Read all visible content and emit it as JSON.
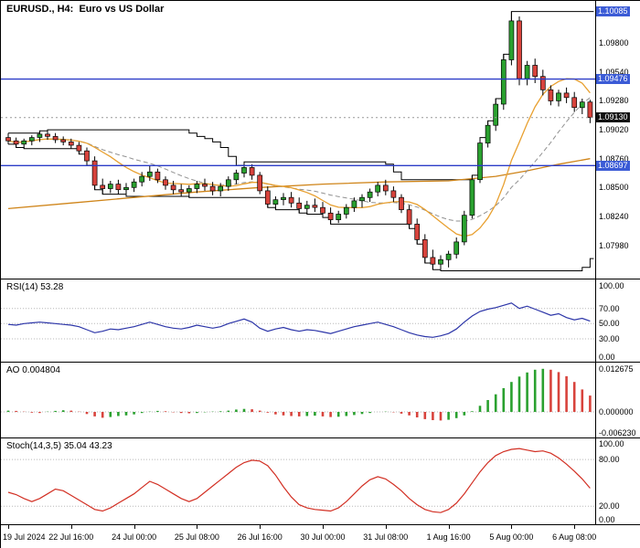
{
  "header": {
    "title": "EURUSD., H4:  Euro vs US Dollar"
  },
  "colors": {
    "bull": "#2aa12f",
    "bear": "#d8433c",
    "wick": "#000000",
    "ma_fast": "#e8a030",
    "ma_mid": "#909090",
    "ma_slow": "#cf8418",
    "channel": "#000000",
    "hline": "#2b3cc8",
    "badge_level": "#3b5bd6",
    "badge_price": "#111111",
    "rsi": "#2c35a8",
    "stoch": "#d22f23",
    "ao_up": "#2aa12f",
    "ao_down": "#d8433c",
    "grid_level": "#b8b8b8"
  },
  "chart_data": [
    {
      "id": "main",
      "type": "candlestick",
      "title": "EURUSD., H4:  Euro vs US Dollar",
      "symbol": "EURUSD",
      "timeframe": "H4",
      "ylim": [
        1.0768,
        1.1018
      ],
      "ohlc": [
        [
          1.0895,
          1.0899,
          1.0889,
          1.0892
        ],
        [
          1.0892,
          1.0895,
          1.0886,
          1.0889
        ],
        [
          1.0889,
          1.0894,
          1.0885,
          1.0892
        ],
        [
          1.0892,
          1.0897,
          1.0888,
          1.0895
        ],
        [
          1.0895,
          1.0901,
          1.0891,
          1.0898
        ],
        [
          1.0898,
          1.0902,
          1.0893,
          1.0896
        ],
        [
          1.0896,
          1.0899,
          1.089,
          1.0893
        ],
        [
          1.0893,
          1.0896,
          1.0888,
          1.0891
        ],
        [
          1.0891,
          1.0894,
          1.0885,
          1.0888
        ],
        [
          1.0888,
          1.0891,
          1.088,
          1.0883
        ],
        [
          1.0883,
          1.0886,
          1.087,
          1.0874
        ],
        [
          1.0874,
          1.0878,
          1.0848,
          1.0852
        ],
        [
          1.0852,
          1.0858,
          1.0844,
          1.0849
        ],
        [
          1.0849,
          1.0856,
          1.0845,
          1.0853
        ],
        [
          1.0853,
          1.0857,
          1.0844,
          1.0848
        ],
        [
          1.0848,
          1.0854,
          1.0842,
          1.085
        ],
        [
          1.085,
          1.0858,
          1.0846,
          1.0855
        ],
        [
          1.0855,
          1.0864,
          1.0851,
          1.086
        ],
        [
          1.086,
          1.087,
          1.0856,
          1.0864
        ],
        [
          1.0864,
          1.0867,
          1.0854,
          1.0857
        ],
        [
          1.0857,
          1.086,
          1.0848,
          1.0852
        ],
        [
          1.0852,
          1.0856,
          1.0844,
          1.0848
        ],
        [
          1.0848,
          1.0853,
          1.0842,
          1.0846
        ],
        [
          1.0846,
          1.0852,
          1.0841,
          1.0849
        ],
        [
          1.0849,
          1.0856,
          1.0845,
          1.0853
        ],
        [
          1.0853,
          1.0858,
          1.0847,
          1.0851
        ],
        [
          1.0851,
          1.0855,
          1.0843,
          1.0847
        ],
        [
          1.0847,
          1.0854,
          1.0842,
          1.0851
        ],
        [
          1.0851,
          1.086,
          1.0847,
          1.0857
        ],
        [
          1.0857,
          1.0866,
          1.0853,
          1.0863
        ],
        [
          1.0863,
          1.0873,
          1.0859,
          1.0868
        ],
        [
          1.0868,
          1.0871,
          1.0857,
          1.0861
        ],
        [
          1.0861,
          1.0864,
          1.0844,
          1.0847
        ],
        [
          1.0847,
          1.0851,
          1.0832,
          1.0835
        ],
        [
          1.0835,
          1.0842,
          1.083,
          1.0839
        ],
        [
          1.0839,
          1.0845,
          1.0834,
          1.0841
        ],
        [
          1.0841,
          1.0846,
          1.0832,
          1.0836
        ],
        [
          1.0836,
          1.0841,
          1.0827,
          1.0831
        ],
        [
          1.0831,
          1.0838,
          1.0826,
          1.0834
        ],
        [
          1.0834,
          1.084,
          1.0828,
          1.0832
        ],
        [
          1.0832,
          1.0837,
          1.0823,
          1.0827
        ],
        [
          1.0827,
          1.0832,
          1.0817,
          1.0821
        ],
        [
          1.0821,
          1.0829,
          1.0818,
          1.0826
        ],
        [
          1.0826,
          1.0835,
          1.0822,
          1.0832
        ],
        [
          1.0832,
          1.0841,
          1.0828,
          1.0838
        ],
        [
          1.0838,
          1.0844,
          1.0832,
          1.0841
        ],
        [
          1.0841,
          1.0849,
          1.0837,
          1.0846
        ],
        [
          1.0846,
          1.0855,
          1.0842,
          1.0852
        ],
        [
          1.0852,
          1.0857,
          1.0843,
          1.0847
        ],
        [
          1.0847,
          1.0851,
          1.0837,
          1.0841
        ],
        [
          1.0841,
          1.0844,
          1.0827,
          1.083
        ],
        [
          1.083,
          1.0834,
          1.0813,
          1.0817
        ],
        [
          1.0817,
          1.0822,
          1.0799,
          1.0803
        ],
        [
          1.0803,
          1.0808,
          1.0782,
          1.0787
        ],
        [
          1.0787,
          1.0794,
          1.0776,
          1.0781
        ],
        [
          1.0781,
          1.0789,
          1.0775,
          1.0785
        ],
        [
          1.0785,
          1.0793,
          1.0778,
          1.079
        ],
        [
          1.079,
          1.0805,
          1.0786,
          1.0801
        ],
        [
          1.0801,
          1.0829,
          1.0798,
          1.0825
        ],
        [
          1.0825,
          1.0861,
          1.0822,
          1.0857
        ],
        [
          1.0857,
          1.0895,
          1.0854,
          1.089
        ],
        [
          1.089,
          1.091,
          1.0886,
          1.0906
        ],
        [
          1.0906,
          1.093,
          1.0901,
          1.0925
        ],
        [
          1.0925,
          1.097,
          1.092,
          1.0965
        ],
        [
          1.0965,
          1.10085,
          1.096,
          1.1
        ],
        [
          1.1,
          1.1004,
          1.0942,
          1.0948
        ],
        [
          1.0948,
          1.0964,
          1.0942,
          1.096
        ],
        [
          1.096,
          1.0966,
          1.0944,
          1.095
        ],
        [
          1.095,
          1.0956,
          1.0933,
          1.0938
        ],
        [
          1.0938,
          1.0942,
          1.0924,
          1.0928
        ],
        [
          1.0928,
          1.0938,
          1.0923,
          1.0935
        ],
        [
          1.0935,
          1.094,
          1.0926,
          1.0931
        ],
        [
          1.0931,
          1.0936,
          1.0918,
          1.0922
        ],
        [
          1.0922,
          1.093,
          1.0916,
          1.0927
        ],
        [
          1.0927,
          1.0929,
          1.0908,
          1.0913
        ]
      ],
      "x_labels": [
        {
          "i": 0,
          "label": "19 Jul 2024"
        },
        {
          "i": 8,
          "label": "22 Jul 16:00"
        },
        {
          "i": 16,
          "label": "24 Jul 00:00"
        },
        {
          "i": 24,
          "label": "25 Jul 08:00"
        },
        {
          "i": 32,
          "label": "26 Jul 16:00"
        },
        {
          "i": 40,
          "label": "30 Jul 00:00"
        },
        {
          "i": 48,
          "label": "31 Jul 08:00"
        },
        {
          "i": 56,
          "label": "1 Aug 16:00"
        },
        {
          "i": 64,
          "label": "5 Aug 00:00"
        },
        {
          "i": 72,
          "label": "6 Aug 08:00"
        }
      ],
      "y_ticks": [
        {
          "label": "1.09800",
          "value": 1.098
        },
        {
          "label": "1.09540",
          "value": 1.0954
        },
        {
          "label": "1.09280",
          "value": 1.0928
        },
        {
          "label": "1.09020",
          "value": 1.0902
        },
        {
          "label": "1.08760",
          "value": 1.0876
        },
        {
          "label": "1.08500",
          "value": 1.085
        },
        {
          "label": "1.08240",
          "value": 1.0824
        },
        {
          "label": "1.07980",
          "value": 1.0798
        }
      ],
      "badges": [
        {
          "label": "1.10085",
          "value": 1.10085,
          "style": "level",
          "line": false
        },
        {
          "label": "1.09476",
          "value": 1.09476,
          "style": "level",
          "line": true
        },
        {
          "label": "1.09130",
          "value": 1.0913,
          "style": "price",
          "line": false
        },
        {
          "label": "1.08697",
          "value": 1.08697,
          "style": "level",
          "line": true
        }
      ],
      "overlays": {
        "channel_period": 18,
        "sma_fast_period": 10,
        "sma_mid_period": 16,
        "sma_slow_anchors": [
          [
            0,
            1.0831
          ],
          [
            8,
            1.0836
          ],
          [
            16,
            1.0841
          ],
          [
            24,
            1.0846
          ],
          [
            32,
            1.085
          ],
          [
            40,
            1.0853
          ],
          [
            48,
            1.0855
          ],
          [
            56,
            1.0856
          ],
          [
            62,
            1.086
          ],
          [
            66,
            1.0865
          ],
          [
            70,
            1.0871
          ],
          [
            74,
            1.0876
          ]
        ]
      }
    },
    {
      "id": "rsi",
      "type": "line",
      "label": "RSI(14) 53.28",
      "name": "RSI(14)",
      "value": "53.28",
      "ylim": [
        0,
        108
      ],
      "levels": [
        70,
        50,
        30
      ],
      "y_ticks": [
        {
          "label": "100.00",
          "value": 100
        },
        {
          "label": "70.00",
          "value": 70
        },
        {
          "label": "50.00",
          "value": 50
        },
        {
          "label": "30.00",
          "value": 30
        },
        {
          "label": "0.00",
          "value": 0
        }
      ],
      "values": [
        49,
        48,
        50,
        51,
        52,
        51,
        50,
        49,
        48,
        46,
        42,
        38,
        40,
        43,
        42,
        44,
        46,
        49,
        52,
        49,
        46,
        44,
        43,
        45,
        48,
        46,
        44,
        46,
        50,
        53,
        56,
        52,
        44,
        40,
        43,
        45,
        42,
        40,
        42,
        41,
        39,
        37,
        40,
        43,
        46,
        48,
        50,
        52,
        49,
        46,
        42,
        38,
        35,
        33,
        32,
        34,
        37,
        43,
        52,
        60,
        66,
        69,
        71,
        74,
        77,
        70,
        73,
        69,
        65,
        61,
        63,
        58,
        55,
        57,
        53.28
      ]
    },
    {
      "id": "ao",
      "type": "bar",
      "label": "AO 0.004804",
      "name": "AO",
      "value": "0.004804",
      "ylim": [
        -0.0075,
        0.0145
      ],
      "levels": [
        0
      ],
      "y_ticks": [
        {
          "label": "0.012675",
          "value": 0.012675
        },
        {
          "label": "0.000000",
          "value": 0
        },
        {
          "label": "-0.006230",
          "value": -0.00623
        }
      ],
      "values": [
        0.0004,
        0.0003,
        0.0001,
        -0.0002,
        -0.0003,
        0.0001,
        0.0003,
        0.0005,
        0.0004,
        0.0001,
        -0.0006,
        -0.0013,
        -0.0017,
        -0.0015,
        -0.0012,
        -0.001,
        -0.0007,
        -0.0003,
        0.0001,
        0.0003,
        0.0002,
        -0.0001,
        -0.0003,
        -0.0004,
        -0.0003,
        -0.0001,
        0.0001,
        0.0002,
        0.0004,
        0.0007,
        0.0009,
        0.0008,
        0.0004,
        -0.0002,
        -0.0007,
        -0.001,
        -0.0012,
        -0.0013,
        -0.0012,
        -0.0011,
        -0.0013,
        -0.0015,
        -0.0014,
        -0.0012,
        -0.0009,
        -0.0006,
        -0.0003,
        0.0,
        0.0001,
        -0.0001,
        -0.0005,
        -0.001,
        -0.0016,
        -0.0021,
        -0.0024,
        -0.0025,
        -0.0023,
        -0.0018,
        -0.001,
        0.0002,
        0.0018,
        0.0035,
        0.0052,
        0.007,
        0.0088,
        0.0104,
        0.0116,
        0.0124,
        0.012675,
        0.0124,
        0.0117,
        0.0105,
        0.0088,
        0.0066,
        0.004804
      ]
    },
    {
      "id": "stoch",
      "type": "line",
      "label": "Stoch(14,3,5) 35.04 43.23",
      "name": "Stoch(14,3,5)",
      "value": "35.04 43.23",
      "ylim": [
        -3,
        107
      ],
      "levels": [
        80,
        20
      ],
      "y_ticks": [
        {
          "label": "100.00",
          "value": 100
        },
        {
          "label": "80.00",
          "value": 80
        },
        {
          "label": "20.00",
          "value": 20
        },
        {
          "label": "0.00",
          "value": 0
        }
      ],
      "values": [
        38,
        35,
        30,
        26,
        30,
        36,
        42,
        40,
        34,
        28,
        22,
        16,
        14,
        18,
        24,
        30,
        36,
        44,
        52,
        48,
        42,
        36,
        30,
        26,
        30,
        38,
        46,
        54,
        62,
        70,
        76,
        79,
        78,
        72,
        60,
        45,
        32,
        22,
        18,
        16,
        15,
        14,
        18,
        26,
        36,
        46,
        54,
        58,
        55,
        48,
        40,
        30,
        22,
        16,
        13,
        12,
        16,
        24,
        36,
        50,
        64,
        76,
        85,
        90,
        93,
        94,
        92,
        90,
        91,
        88,
        82,
        74,
        65,
        55,
        43.23
      ]
    }
  ]
}
